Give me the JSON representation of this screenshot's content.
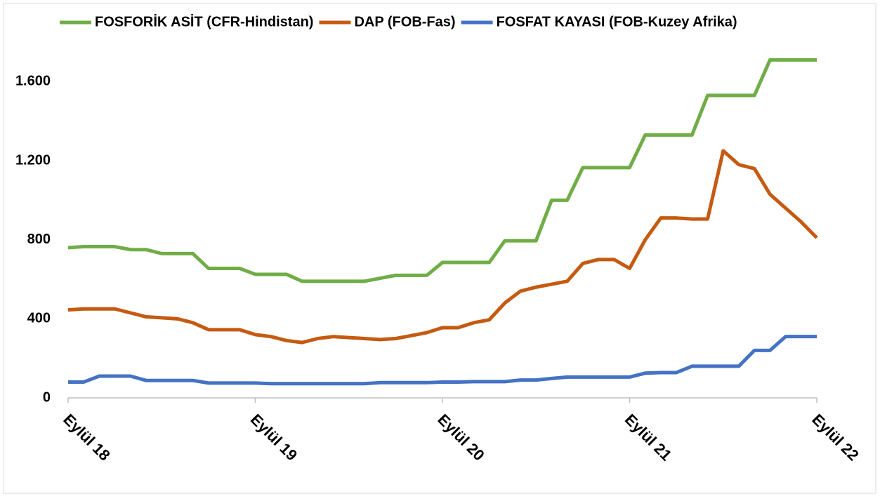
{
  "chart_data": {
    "type": "line",
    "categories": [
      "Eylül 18",
      null,
      null,
      null,
      null,
      null,
      null,
      null,
      null,
      null,
      null,
      null,
      "Eylül 19",
      null,
      null,
      null,
      null,
      null,
      null,
      null,
      null,
      null,
      null,
      null,
      "Eylül 20",
      null,
      null,
      null,
      null,
      null,
      null,
      null,
      null,
      null,
      null,
      null,
      "Eylül 21",
      null,
      null,
      null,
      null,
      null,
      null,
      null,
      null,
      null,
      null,
      null,
      "Eylül 22"
    ],
    "series": [
      {
        "name": "FOSFORİK ASİT (CFR-Hindistan)",
        "color": "#70ad47",
        "values": [
          760,
          765,
          765,
          765,
          750,
          750,
          730,
          730,
          730,
          655,
          655,
          655,
          625,
          625,
          625,
          590,
          590,
          590,
          590,
          590,
          605,
          620,
          620,
          620,
          685,
          685,
          685,
          685,
          795,
          795,
          795,
          1000,
          1000,
          1165,
          1165,
          1165,
          1165,
          1330,
          1330,
          1330,
          1330,
          1530,
          1530,
          1530,
          1530,
          1710,
          1710,
          1710,
          1710
        ]
      },
      {
        "name": "DAP (FOB-Fas)",
        "color": "#c55a11",
        "values": [
          445,
          450,
          450,
          450,
          430,
          410,
          405,
          400,
          380,
          345,
          345,
          345,
          320,
          310,
          290,
          280,
          300,
          310,
          305,
          300,
          295,
          300,
          315,
          330,
          355,
          355,
          380,
          395,
          480,
          540,
          560,
          575,
          590,
          680,
          700,
          700,
          655,
          800,
          910,
          910,
          905,
          905,
          1250,
          1180,
          1160,
          1030,
          960,
          890,
          810
        ]
      },
      {
        "name": "FOSFAT KAYASI (FOB-Kuzey Afrika)",
        "color": "#4472c4",
        "values": [
          80,
          80,
          110,
          110,
          110,
          88,
          88,
          88,
          88,
          75,
          75,
          75,
          75,
          72,
          72,
          72,
          72,
          72,
          72,
          72,
          77,
          77,
          77,
          77,
          80,
          80,
          82,
          82,
          82,
          90,
          90,
          98,
          105,
          105,
          105,
          105,
          105,
          125,
          128,
          128,
          160,
          160,
          160,
          160,
          240,
          240,
          310,
          310,
          310
        ]
      }
    ],
    "ylim": [
      0,
      1800
    ],
    "yticks": [
      0,
      400,
      800,
      {
        "value": 1200,
        "label": "1.200"
      },
      {
        "value": 1600,
        "label": "1.600"
      }
    ],
    "legend": "top"
  }
}
